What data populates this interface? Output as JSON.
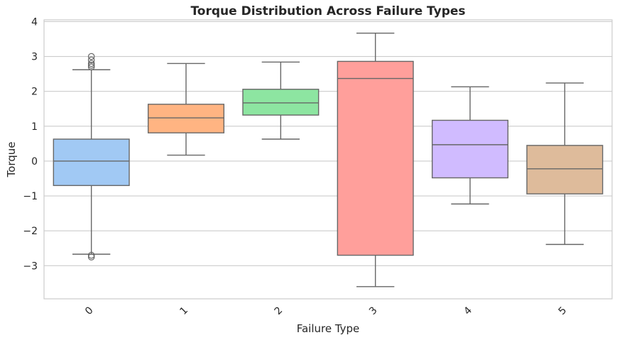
{
  "chart_data": {
    "type": "box",
    "title": "Torque Distribution Across Failure Types",
    "xlabel": "Failure Type",
    "ylabel": "Torque",
    "ylim": [
      -3.95,
      4.05
    ],
    "yticks": [
      -3,
      -2,
      -1,
      0,
      1,
      2,
      3,
      4
    ],
    "ytick_labels": [
      "−3",
      "−2",
      "−1",
      "0",
      "1",
      "2",
      "3",
      "4"
    ],
    "grid": true,
    "categories": [
      "0",
      "1",
      "2",
      "3",
      "4",
      "5"
    ],
    "colors": [
      "#a1c9f4",
      "#ffb482",
      "#8de5a1",
      "#ff9f9b",
      "#d0bbff",
      "#debb9b"
    ],
    "edge_color": "#676767",
    "boxes": [
      {
        "category": "0",
        "whisker_low": -2.67,
        "q1": -0.7,
        "median": 0.0,
        "q3": 0.63,
        "whisker_high": 2.62,
        "outliers": [
          2.7,
          2.75,
          2.8,
          2.9,
          3.0,
          -2.7,
          -2.75
        ]
      },
      {
        "category": "1",
        "whisker_low": 0.17,
        "q1": 0.81,
        "median": 1.24,
        "q3": 1.63,
        "whisker_high": 2.8,
        "outliers": []
      },
      {
        "category": "2",
        "whisker_low": 0.63,
        "q1": 1.32,
        "median": 1.67,
        "q3": 2.06,
        "whisker_high": 2.84,
        "outliers": []
      },
      {
        "category": "3",
        "whisker_low": -3.6,
        "q1": -2.7,
        "median": 2.37,
        "q3": 2.86,
        "whisker_high": 3.67,
        "outliers": []
      },
      {
        "category": "4",
        "whisker_low": -1.23,
        "q1": -0.48,
        "median": 0.47,
        "q3": 1.17,
        "whisker_high": 2.13,
        "outliers": []
      },
      {
        "category": "5",
        "whisker_low": -2.39,
        "q1": -0.94,
        "median": -0.22,
        "q3": 0.45,
        "whisker_high": 2.24,
        "outliers": []
      }
    ]
  }
}
